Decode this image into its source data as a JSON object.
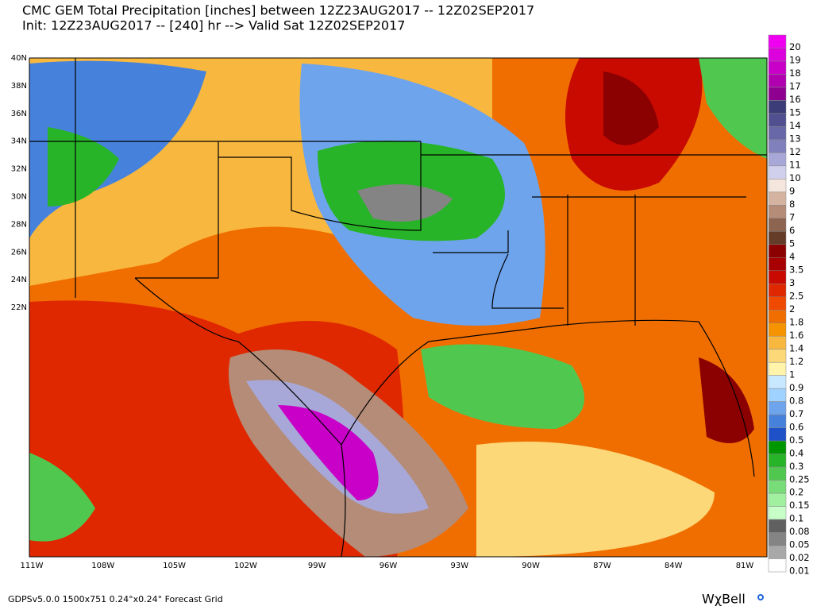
{
  "header": {
    "title": "CMC GEM Total Precipitation [inches] between 12Z23AUG2017 -- 12Z02SEP2017",
    "subtitle": "Init: 12Z23AUG2017 -- [240] hr --> Valid Sat 12Z02SEP2017"
  },
  "map": {
    "lat_labels": [
      "40N",
      "38N",
      "36N",
      "34N",
      "32N",
      "30N",
      "28N",
      "26N",
      "24N",
      "22N"
    ],
    "lon_labels": [
      "111W",
      "108W",
      "105W",
      "102W",
      "99W",
      "96W",
      "93W",
      "90W",
      "87W",
      "84W",
      "81W"
    ]
  },
  "legend": [
    {
      "value": 20,
      "color": "#f000f0"
    },
    {
      "value": 19,
      "color": "#dc00dc"
    },
    {
      "value": 18,
      "color": "#c800c8"
    },
    {
      "value": 17,
      "color": "#b000b0"
    },
    {
      "value": 16,
      "color": "#900090"
    },
    {
      "value": 15,
      "color": "#3c3c78"
    },
    {
      "value": 14,
      "color": "#505090"
    },
    {
      "value": 13,
      "color": "#6868a8"
    },
    {
      "value": 12,
      "color": "#8080bc"
    },
    {
      "value": 11,
      "color": "#a8a8d8"
    },
    {
      "value": 10,
      "color": "#d0d0ec"
    },
    {
      "value": 9,
      "color": "#f4e6dc"
    },
    {
      "value": 8,
      "color": "#d4b4a0"
    },
    {
      "value": 7,
      "color": "#b48c78"
    },
    {
      "value": 6,
      "color": "#8c6450"
    },
    {
      "value": 5,
      "color": "#643c28"
    },
    {
      "value": 4,
      "color": "#8b0000"
    },
    {
      "value": 3.5,
      "color": "#a80000"
    },
    {
      "value": 3,
      "color": "#c80a00"
    },
    {
      "value": 2.5,
      "color": "#e02800"
    },
    {
      "value": 2,
      "color": "#f04a00"
    },
    {
      "value": 1.8,
      "color": "#f06e00"
    },
    {
      "value": 1.6,
      "color": "#f59400"
    },
    {
      "value": 1.4,
      "color": "#f8b840"
    },
    {
      "value": 1.2,
      "color": "#fcd878"
    },
    {
      "value": 1,
      "color": "#fff4aa"
    },
    {
      "value": 0.9,
      "color": "#c8e8ff"
    },
    {
      "value": 0.8,
      "color": "#a0d2ff"
    },
    {
      "value": 0.7,
      "color": "#6ea4ec"
    },
    {
      "value": 0.6,
      "color": "#4682dc"
    },
    {
      "value": 0.5,
      "color": "#1e50c8"
    },
    {
      "value": 0.4,
      "color": "#009600"
    },
    {
      "value": 0.3,
      "color": "#28b428"
    },
    {
      "value": 0.25,
      "color": "#50c850"
    },
    {
      "value": 0.2,
      "color": "#78dc78"
    },
    {
      "value": 0.15,
      "color": "#a0f0a0"
    },
    {
      "value": 0.1,
      "color": "#c8ffc8"
    },
    {
      "value": 0.08,
      "color": "#606060"
    },
    {
      "value": 0.05,
      "color": "#848484"
    },
    {
      "value": 0.02,
      "color": "#a8a8a8"
    },
    {
      "value": 0.01,
      "color": "#ffffff"
    }
  ],
  "footer": {
    "grid_info": "GDPSv5.0.0 1500x751 0.24°x0.24° Forecast Grid",
    "logo": "WχBell"
  }
}
